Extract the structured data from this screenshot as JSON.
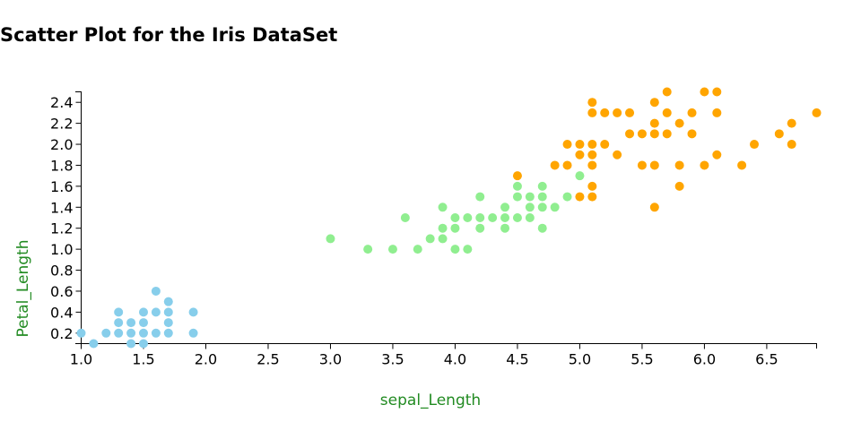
{
  "chart_data": {
    "type": "scatter",
    "title": "Scatter Plot for the Iris DataSet",
    "x_label": "sepal_Length",
    "y_label": "Petal_Length",
    "xlim": [
      1.0,
      6.9
    ],
    "ylim": [
      0.1,
      2.5
    ],
    "xticks": [
      {
        "value": 1,
        "label": "1.0"
      },
      1.5,
      {
        "value": 2,
        "label": "2.0"
      },
      2.5,
      {
        "value": 3,
        "label": "3.0"
      },
      3.5,
      {
        "value": 4,
        "label": "4.0"
      },
      4.5,
      {
        "value": 5,
        "label": "5.0"
      },
      5.5,
      {
        "value": 6,
        "label": "6.0"
      },
      6.5
    ],
    "yticks": [
      0.2,
      0.4,
      0.6,
      0.8,
      {
        "value": 1,
        "label": "1.0"
      },
      1.2,
      1.4,
      1.6,
      1.8,
      {
        "value": 2,
        "label": "2.0"
      },
      2.2,
      2.4
    ],
    "grid": false,
    "series": [
      {
        "color": "#87ceeb",
        "x": [
          1.0,
          1.1,
          1.2,
          1.3,
          1.3,
          1.3,
          1.4,
          1.4,
          1.4,
          1.5,
          1.5,
          1.5,
          1.5,
          1.6,
          1.6,
          1.6,
          1.7,
          1.7,
          1.7,
          1.7,
          1.9,
          1.9
        ],
        "values": [
          0.2,
          0.1,
          0.2,
          0.2,
          0.3,
          0.4,
          0.1,
          0.2,
          0.3,
          0.1,
          0.2,
          0.3,
          0.4,
          0.2,
          0.4,
          0.6,
          0.2,
          0.3,
          0.4,
          0.5,
          0.2,
          0.4
        ]
      },
      {
        "color": "#90ee90",
        "x": [
          3.0,
          3.3,
          3.5,
          3.6,
          3.7,
          3.8,
          3.9,
          3.9,
          3.9,
          4.0,
          4.0,
          4.0,
          4.1,
          4.1,
          4.2,
          4.2,
          4.2,
          4.3,
          4.4,
          4.4,
          4.4,
          4.5,
          4.5,
          4.5,
          4.6,
          4.6,
          4.6,
          4.7,
          4.7,
          4.7,
          4.7,
          4.8,
          4.9,
          5.0
        ],
        "values": [
          1.1,
          1.0,
          1.0,
          1.3,
          1.0,
          1.1,
          1.1,
          1.2,
          1.4,
          1.0,
          1.2,
          1.3,
          1.0,
          1.3,
          1.2,
          1.3,
          1.5,
          1.3,
          1.2,
          1.3,
          1.4,
          1.3,
          1.5,
          1.6,
          1.3,
          1.4,
          1.5,
          1.2,
          1.4,
          1.5,
          1.6,
          1.4,
          1.5,
          1.7
        ]
      },
      {
        "color": "#ffa500",
        "x": [
          4.5,
          4.8,
          4.9,
          4.9,
          5.0,
          5.0,
          5.0,
          5.1,
          5.1,
          5.1,
          5.1,
          5.1,
          5.1,
          5.1,
          5.2,
          5.2,
          5.3,
          5.3,
          5.4,
          5.4,
          5.5,
          5.5,
          5.6,
          5.6,
          5.6,
          5.6,
          5.6,
          5.7,
          5.7,
          5.7,
          5.8,
          5.8,
          5.8,
          5.9,
          5.9,
          6.0,
          6.0,
          6.1,
          6.1,
          6.1,
          6.3,
          6.4,
          6.6,
          6.7,
          6.7,
          6.9
        ],
        "values": [
          1.7,
          1.8,
          1.8,
          2.0,
          1.5,
          1.9,
          2.0,
          1.5,
          1.6,
          1.8,
          1.9,
          2.0,
          2.3,
          2.4,
          2.0,
          2.3,
          1.9,
          2.3,
          2.1,
          2.3,
          1.8,
          2.1,
          1.4,
          1.8,
          2.1,
          2.2,
          2.4,
          2.1,
          2.3,
          2.5,
          1.6,
          1.8,
          2.2,
          2.1,
          2.3,
          1.8,
          2.5,
          1.9,
          2.3,
          2.5,
          1.8,
          2.0,
          2.1,
          2.0,
          2.2,
          2.3
        ]
      }
    ]
  }
}
